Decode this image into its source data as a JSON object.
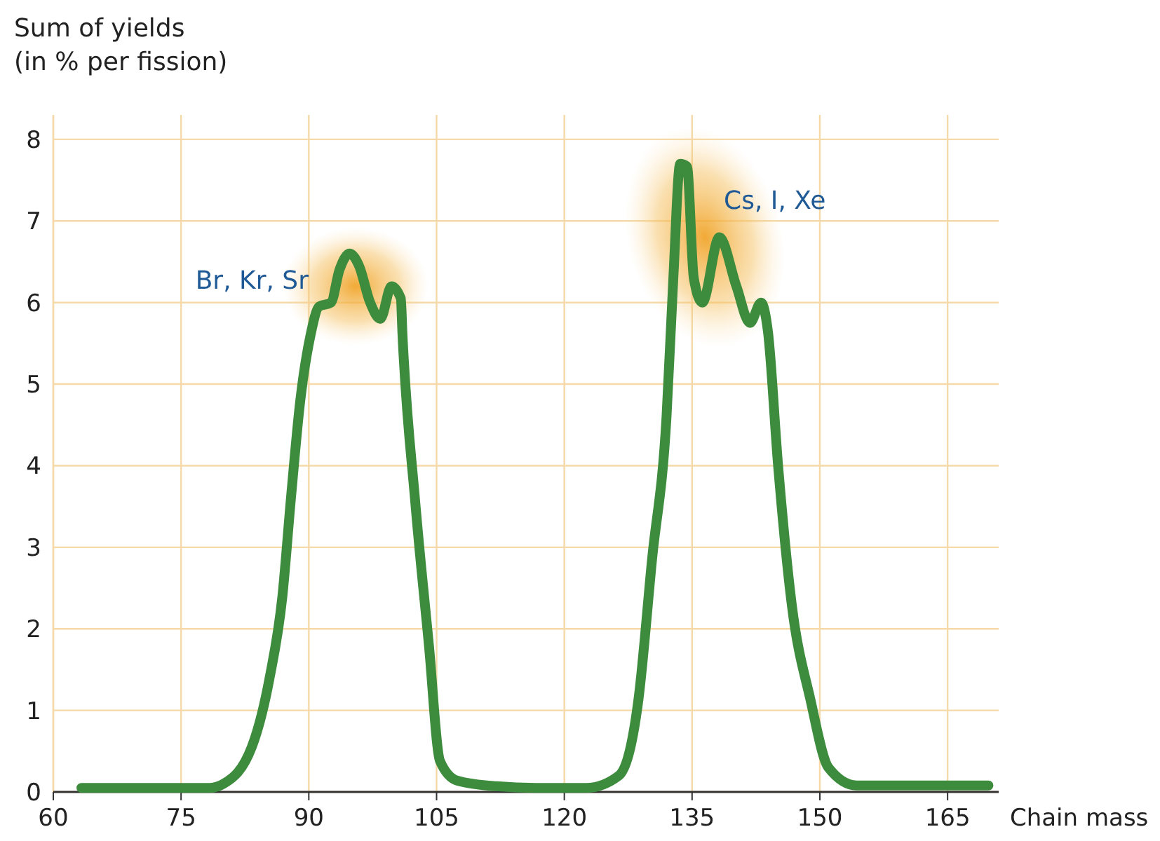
{
  "chart_data": {
    "type": "line",
    "xlabel": "Chain mass",
    "ylabel": "Sum of yields\n(in % per fission)",
    "xlim": [
      60,
      171
    ],
    "ylim": [
      0,
      8.3
    ],
    "xticks": [
      60,
      75,
      90,
      105,
      120,
      135,
      150,
      165
    ],
    "yticks": [
      0,
      1,
      2,
      3,
      4,
      5,
      6,
      7,
      8
    ],
    "grid": true,
    "marker": "none",
    "line_style": "solid",
    "series": [
      {
        "color": "#3d8b3d",
        "x": [
          63.3,
          78.4,
          80,
          83.3,
          85.4,
          86.9,
          87.9,
          89,
          90.2,
          91.2,
          92.6,
          93.6,
          94.8,
          95.9,
          97.2,
          98.4,
          99.7,
          100.8,
          101,
          102.5,
          104.1,
          105.4,
          107.4,
          112,
          117,
          122.6,
          126.4,
          128.7,
          130.3,
          132,
          132.8,
          133.6,
          134.4,
          135.2,
          136.2,
          138.2,
          140.2,
          141.8,
          143.1,
          143.9,
          145.1,
          146.7,
          148.9,
          151,
          154.3,
          160,
          169.8
        ],
        "values": [
          0.05,
          0.05,
          0.1,
          0.55,
          1.4,
          2.4,
          3.6,
          4.8,
          5.6,
          5.95,
          6.0,
          6.4,
          6.6,
          6.45,
          6.0,
          5.8,
          6.2,
          6.05,
          5.6,
          3.55,
          1.8,
          0.38,
          0.14,
          0.07,
          0.05,
          0.05,
          0.2,
          1.13,
          2.85,
          4.6,
          6.3,
          7.7,
          7.67,
          6.3,
          6.0,
          6.8,
          6.2,
          5.75,
          6.0,
          5.65,
          4.0,
          2.3,
          1.13,
          0.3,
          0.08,
          0.08,
          0.08
        ]
      }
    ],
    "annotations": [
      "Br, Kr, Sr",
      "Cs, I, Xe"
    ]
  }
}
